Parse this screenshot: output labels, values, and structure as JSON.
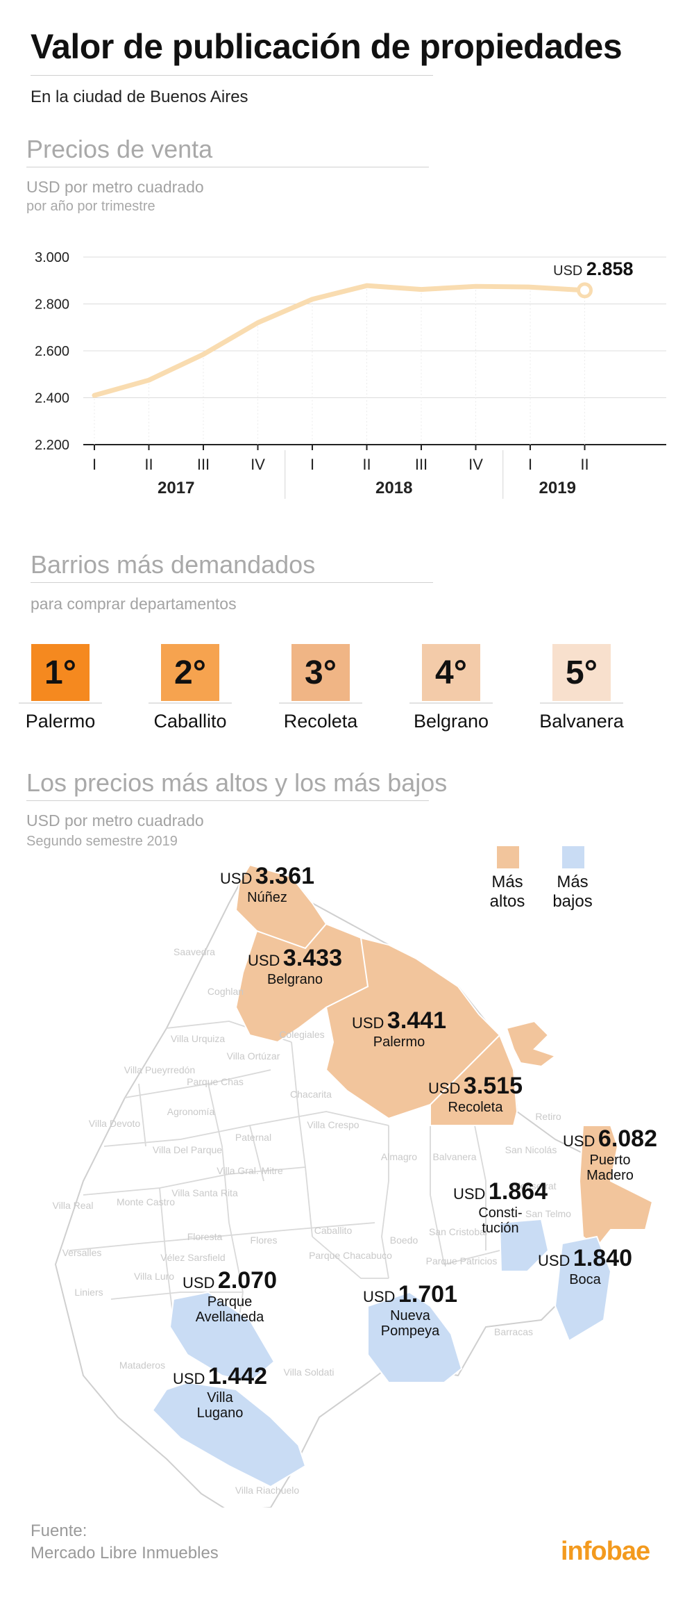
{
  "header": {
    "title": "Valor de publicación de propiedades",
    "subtitle": "En la ciudad de Buenos Aires"
  },
  "sale_section": {
    "title": "Precios de venta",
    "unit": "USD por metro cuadrado",
    "period": "por año por trimestre"
  },
  "chart_data": {
    "type": "line",
    "x": [
      "2017-I",
      "2017-II",
      "2017-III",
      "2017-IV",
      "2018-I",
      "2018-II",
      "2018-III",
      "2018-IV",
      "2019-I",
      "2019-II"
    ],
    "quarter_labels": [
      "I",
      "II",
      "III",
      "IV",
      "I",
      "II",
      "III",
      "IV",
      "I",
      "II"
    ],
    "year_labels": [
      "2017",
      "2018",
      "2019"
    ],
    "series": [
      {
        "values": [
          2410,
          2475,
          2585,
          2720,
          2820,
          2878,
          2862,
          2875,
          2872,
          2858
        ]
      }
    ],
    "ylim": [
      2200,
      3000
    ],
    "yticks": [
      "2.200",
      "2.400",
      "2.600",
      "2.800",
      "3.000"
    ],
    "yticks_values": [
      2200,
      2400,
      2600,
      2800,
      3000
    ],
    "end_label": {
      "prefix": "USD",
      "value": "2.858"
    },
    "line_color": "#f9dcb0",
    "grid": true
  },
  "demand_section": {
    "title": "Barrios más demandados",
    "subtitle": "para comprar departamentos",
    "ranks": [
      {
        "rank": "1°",
        "name": "Palermo",
        "color": "#f5891f"
      },
      {
        "rank": "2°",
        "name": "Caballito",
        "color": "#f6a34f"
      },
      {
        "rank": "3°",
        "name": "Recoleta",
        "color": "#f0b585"
      },
      {
        "rank": "4°",
        "name": "Belgrano",
        "color": "#f3cba9"
      },
      {
        "rank": "5°",
        "name": "Balvanera",
        "color": "#f8e0cd"
      }
    ]
  },
  "map_section": {
    "title": "Los precios más altos y los más bajos",
    "unit": "USD por metro cuadrado",
    "period": "Segundo semestre 2019",
    "legend": {
      "high": {
        "line1": "Más",
        "line2": "altos",
        "color": "#f2c59c"
      },
      "low": {
        "line1": "Más",
        "line2": "bajos",
        "color": "#c9dcf4"
      }
    },
    "prices": [
      {
        "usd": "USD",
        "value": "3.361",
        "name": [
          "Núñez"
        ]
      },
      {
        "usd": "USD",
        "value": "3.433",
        "name": [
          "Belgrano"
        ]
      },
      {
        "usd": "USD",
        "value": "3.441",
        "name": [
          "Palermo"
        ]
      },
      {
        "usd": "USD",
        "value": "3.515",
        "name": [
          "Recoleta"
        ]
      },
      {
        "usd": "USD",
        "value": "6.082",
        "name": [
          "Puerto",
          "Madero"
        ]
      },
      {
        "usd": "USD",
        "value": "1.864",
        "name": [
          "Consti-",
          "tución"
        ]
      },
      {
        "usd": "USD",
        "value": "1.840",
        "name": [
          "Boca"
        ]
      },
      {
        "usd": "USD",
        "value": "2.070",
        "name": [
          "Parque",
          "Avellaneda"
        ]
      },
      {
        "usd": "USD",
        "value": "1.701",
        "name": [
          "Nueva",
          "Pompeya"
        ]
      },
      {
        "usd": "USD",
        "value": "1.442",
        "name": [
          "Villa",
          "Lugano"
        ]
      }
    ],
    "background_neighborhoods": [
      "Saavedra",
      "Coghlan",
      "Villa Urquiza",
      "Villa Pueyrredón",
      "Villa Ortúzar",
      "Colegiales",
      "Parque Chas",
      "Agronomía",
      "Chacarita",
      "Villa Devoto",
      "Paternal",
      "Villa Crespo",
      "Villa Del Parque",
      "Villa Gral. Mitre",
      "Almagro",
      "Balvanera",
      "Monte Castro",
      "Villa Santa Rita",
      "Retiro",
      "San Nicolás",
      "Monserrat",
      "San Telmo",
      "Villa Real",
      "Floresta",
      "Caballito",
      "Boedo",
      "San Cristobal",
      "Versalles",
      "Liniers",
      "Vélez Sarsfield",
      "Villa Luro",
      "Flores",
      "Parque Chacabuco",
      "Parque Patricios",
      "Barracas",
      "Mataderos",
      "Villa Soldati",
      "Villa Riachuelo"
    ]
  },
  "footer": {
    "source_label": "Fuente:",
    "source": "Mercado Libre Inmuebles",
    "logo": "infobae"
  }
}
